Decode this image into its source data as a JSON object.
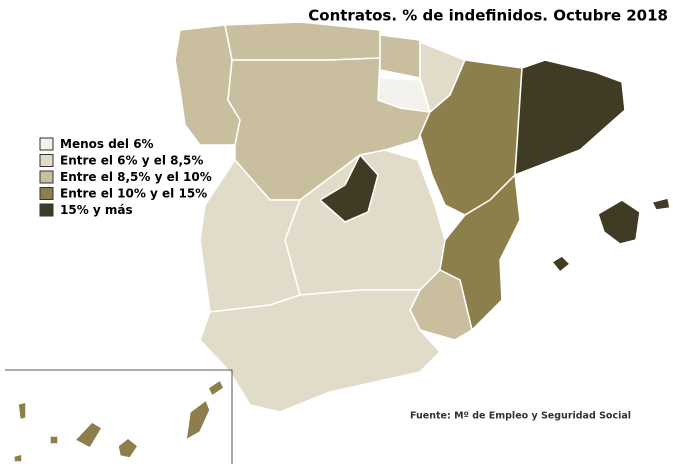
{
  "title": "Contratos. % de indefinidos. Octubre 2018",
  "legend": [
    {
      "label": "Menos del 6%",
      "color": "#f4f2ec"
    },
    {
      "label": "Entre el 6% y el 8,5%",
      "color": "#e1dcca"
    },
    {
      "label": "Entre el 8,5% y el 10%",
      "color": "#c9bf9e"
    },
    {
      "label": "Entre el 10% y el 15%",
      "color": "#8d7f4c"
    },
    {
      "label": "15% y más",
      "color": "#3f3b24"
    }
  ],
  "source": "Fuente: Mº de Empleo y Seguridad Social"
}
